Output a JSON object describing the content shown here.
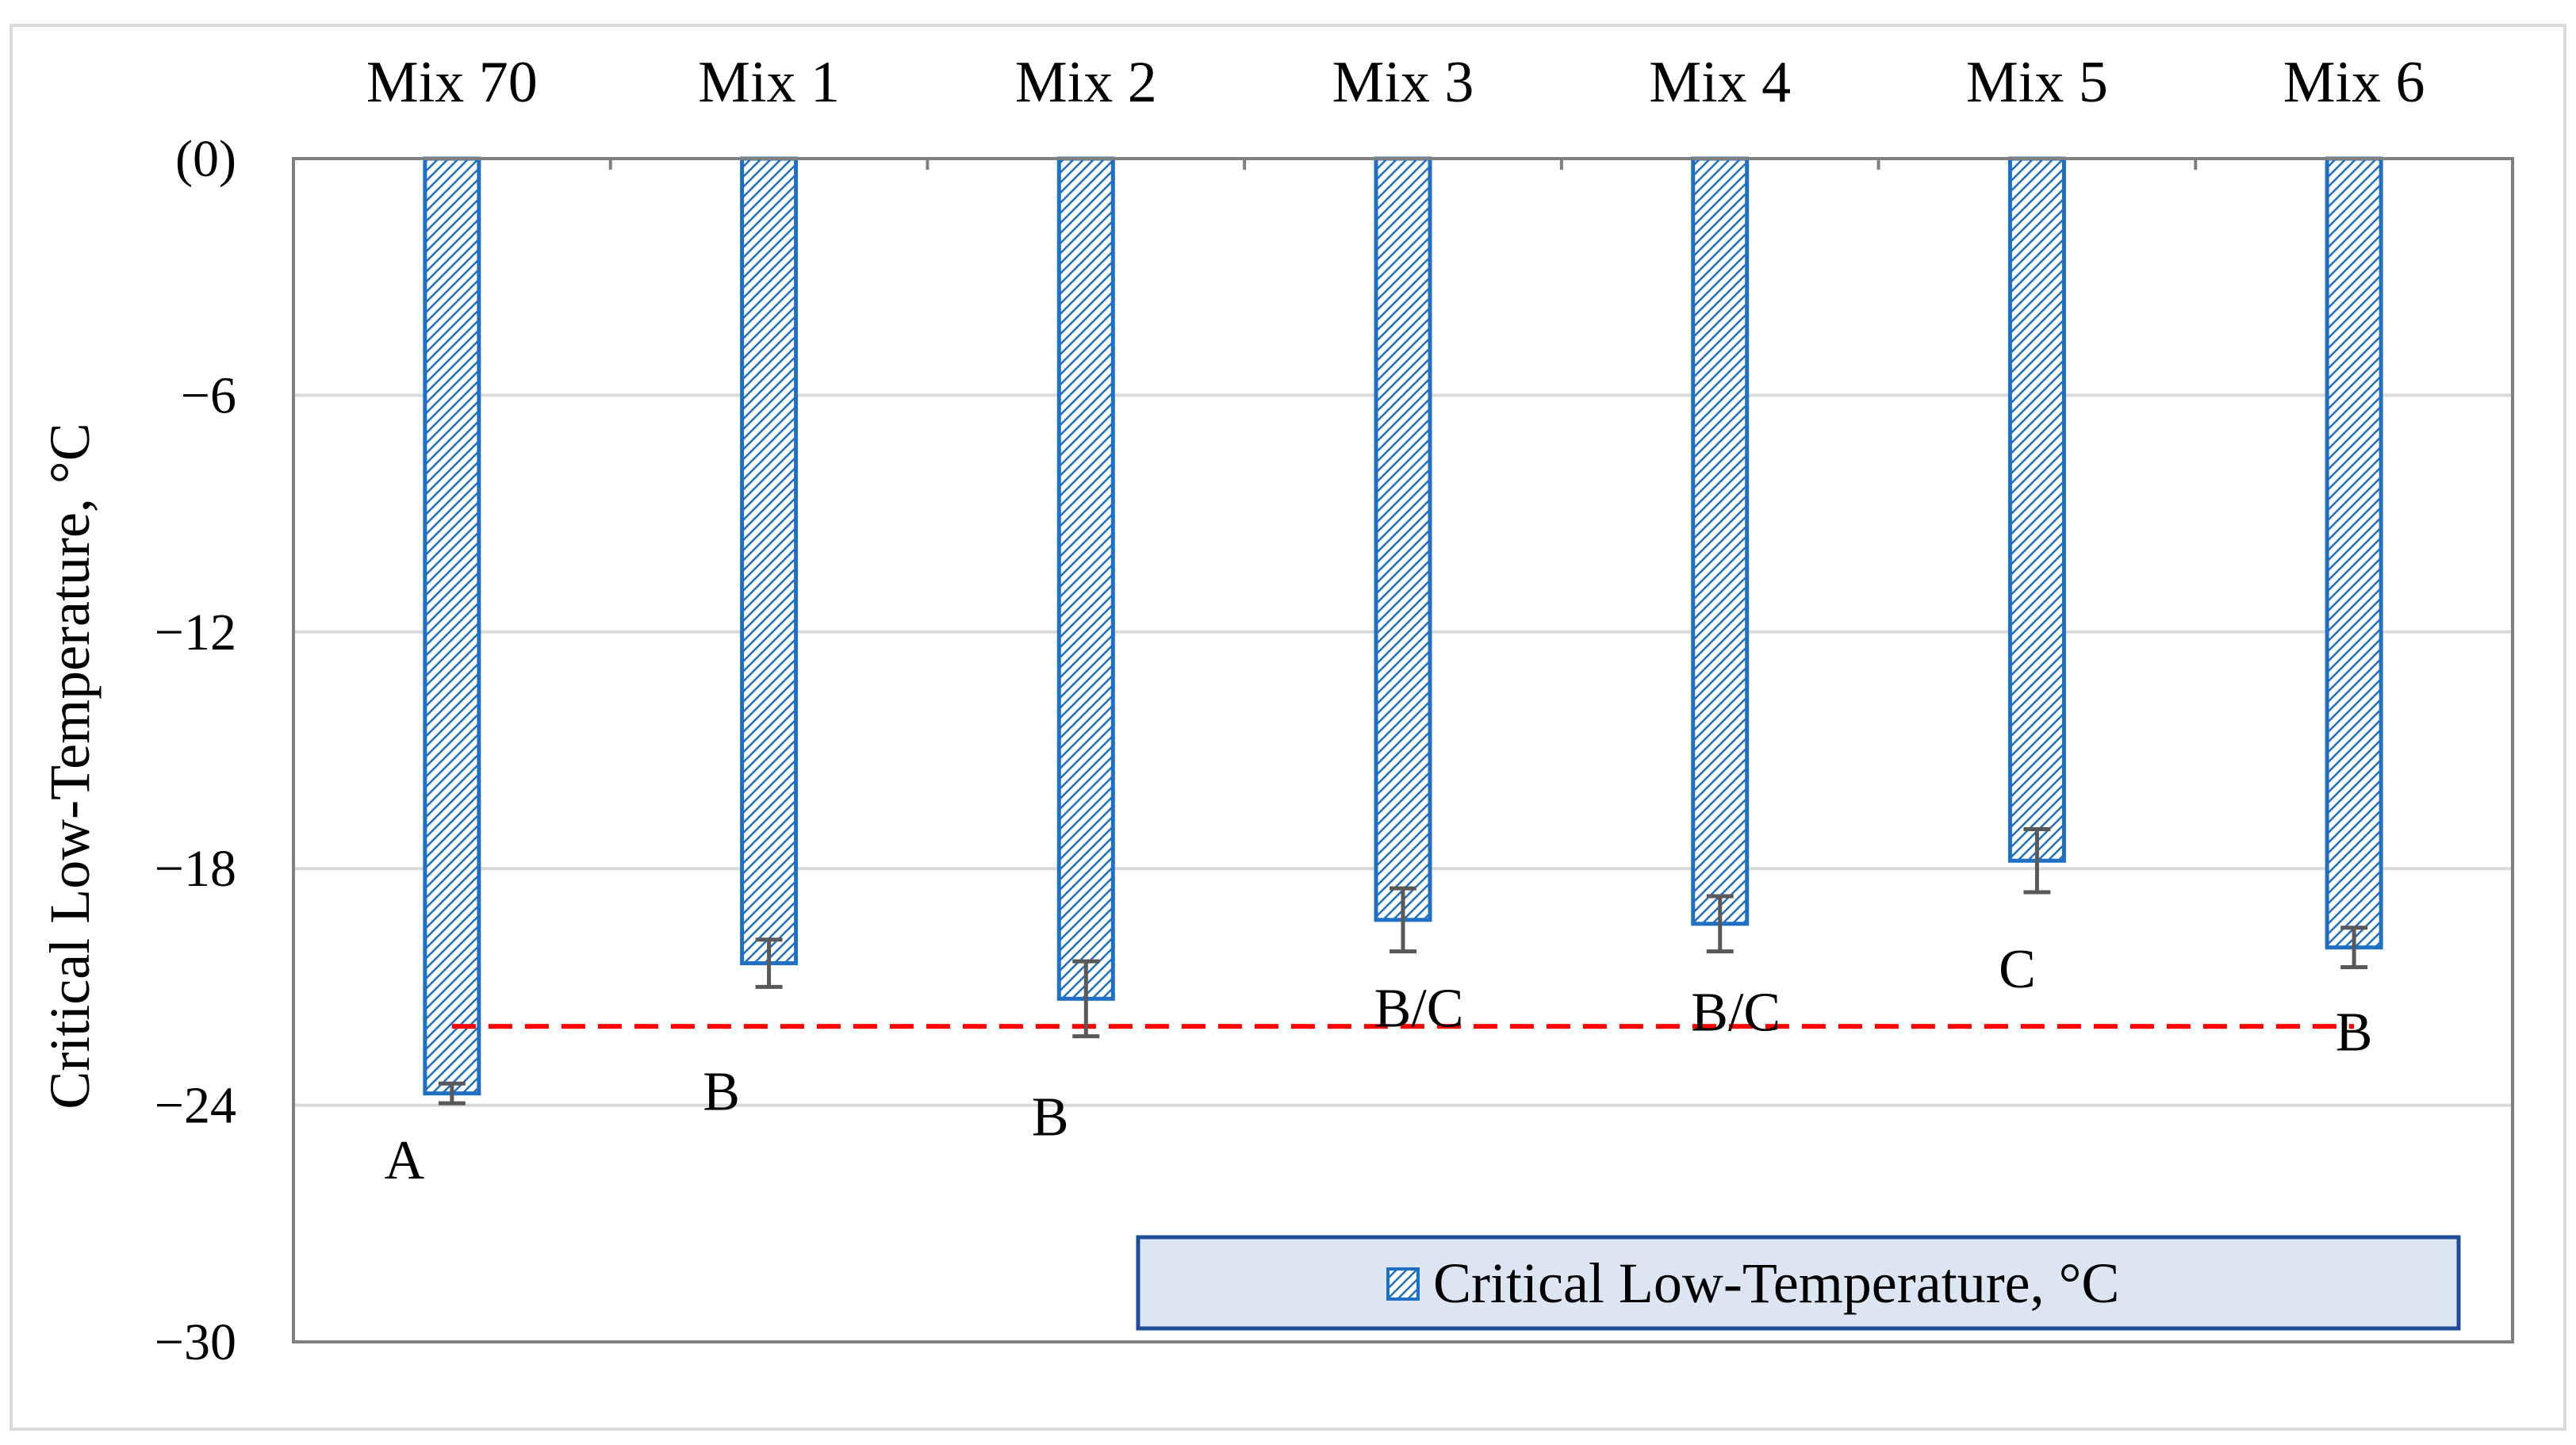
{
  "chart_data": {
    "type": "bar",
    "title": "",
    "xlabel": "",
    "ylabel": "Critical Low-Temperature, °C",
    "categories": [
      "Mix 70",
      "Mix 1",
      "Mix 2",
      "Mix 3",
      "Mix 4",
      "Mix 5",
      "Mix 6"
    ],
    "series": [
      {
        "name": "Critical Low-Temperature, °C",
        "values": [
          -23.7,
          -20.4,
          -21.3,
          -19.3,
          -19.4,
          -17.8,
          -20.0
        ],
        "error": [
          0.25,
          0.6,
          0.95,
          0.8,
          0.7,
          0.8,
          0.5
        ],
        "color": "#1f6fc4"
      }
    ],
    "group_labels": [
      "A",
      "B",
      "B",
      "B/C",
      "B/C",
      "C",
      "B"
    ],
    "reference_line": {
      "value": -22.0,
      "color": "#ff0000",
      "style": "dashed"
    },
    "ylim": [
      -30,
      0
    ],
    "yticks": [
      0,
      -6,
      -12,
      -18,
      -24,
      -30
    ],
    "ytick_labels": [
      "(0)",
      "−6",
      "−12",
      "−18",
      "−24",
      "−30"
    ],
    "x_axis_position": "top",
    "grid": true,
    "legend_position": "bottom-right"
  }
}
